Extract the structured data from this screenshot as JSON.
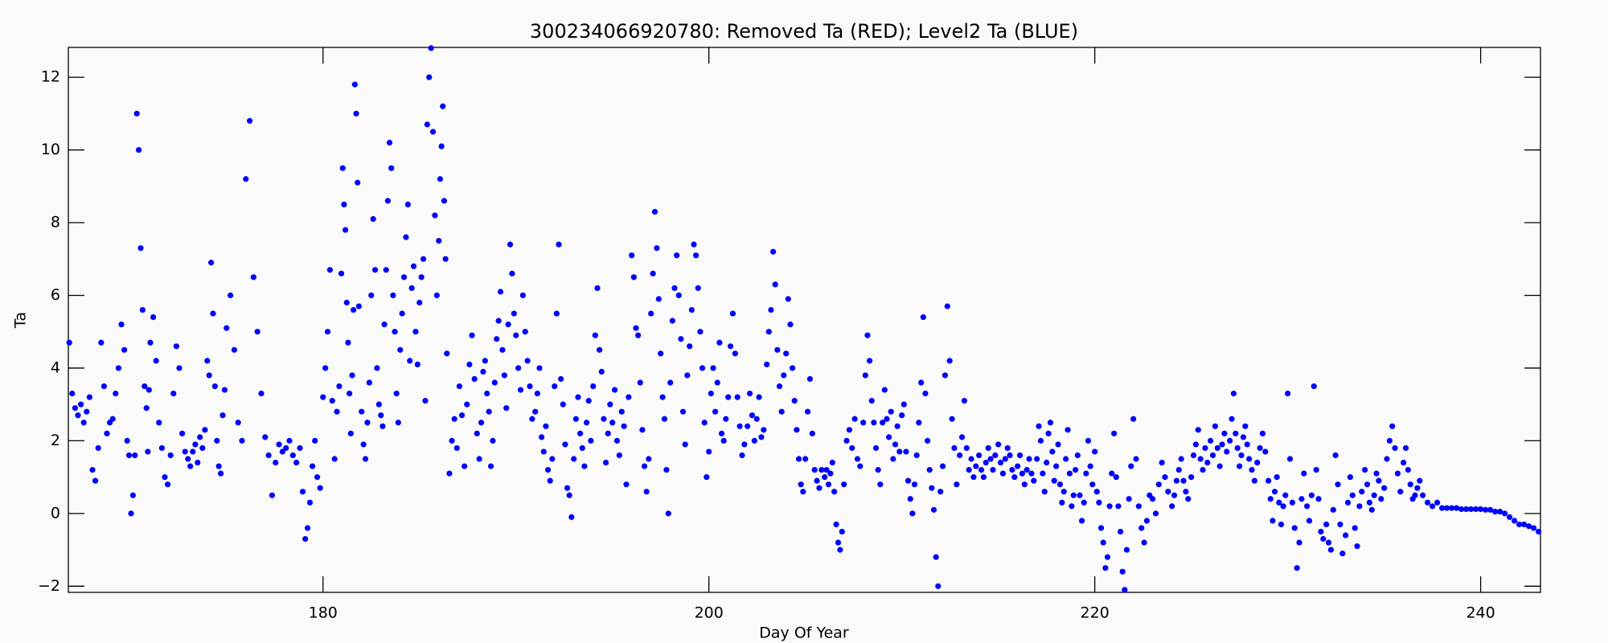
{
  "chart_data": {
    "type": "scatter",
    "title": "300234066920780: Removed Ta (RED); Level2 Ta (BLUE)",
    "x_label": "Day Of Year",
    "y_label": "Ta",
    "color": "#0000ff",
    "xlim": [
      166.8,
      243.1
    ],
    "ylim": [
      -2.17,
      12.82
    ],
    "xticks": [
      180,
      200,
      220,
      240
    ],
    "yticks": [
      {
        "value": -2,
        "label": "−2"
      },
      0,
      2,
      4,
      6,
      8,
      10,
      12
    ],
    "x": [
      166.85,
      167.0,
      167.15,
      167.3,
      167.45,
      167.6,
      167.75,
      167.9,
      168.05,
      168.2,
      168.35,
      168.5,
      168.65,
      168.8,
      168.95,
      169.1,
      169.25,
      169.4,
      169.55,
      169.7,
      169.85,
      169.95,
      170.05,
      170.15,
      170.25,
      170.35,
      170.45,
      170.55,
      170.65,
      170.75,
      170.85,
      170.92,
      170.98,
      171.05,
      171.2,
      171.35,
      171.5,
      171.65,
      171.8,
      171.95,
      172.1,
      172.25,
      172.4,
      172.55,
      172.7,
      172.85,
      173.0,
      173.12,
      173.25,
      173.38,
      173.5,
      173.62,
      173.75,
      173.88,
      174.0,
      174.1,
      174.2,
      174.3,
      174.4,
      174.5,
      174.6,
      174.7,
      174.8,
      174.9,
      175.0,
      175.2,
      175.4,
      175.6,
      175.8,
      176.0,
      176.2,
      176.4,
      176.6,
      176.8,
      177.0,
      177.18,
      177.36,
      177.54,
      177.72,
      177.9,
      178.08,
      178.26,
      178.44,
      178.62,
      178.8,
      178.95,
      179.08,
      179.2,
      179.32,
      179.45,
      179.58,
      179.7,
      179.85,
      180.0,
      180.12,
      180.24,
      180.36,
      180.48,
      180.6,
      180.72,
      180.84,
      180.95,
      181.02,
      181.09,
      181.16,
      181.23,
      181.3,
      181.37,
      181.44,
      181.51,
      181.58,
      181.65,
      181.72,
      181.79,
      181.86,
      182.0,
      182.1,
      182.2,
      182.3,
      182.4,
      182.5,
      182.6,
      182.7,
      182.8,
      182.9,
      183.0,
      183.09,
      183.18,
      183.27,
      183.36,
      183.45,
      183.54,
      183.63,
      183.72,
      183.81,
      183.9,
      184.0,
      184.1,
      184.2,
      184.3,
      184.4,
      184.5,
      184.6,
      184.7,
      184.8,
      184.9,
      185.0,
      185.1,
      185.2,
      185.3,
      185.4,
      185.5,
      185.6,
      185.7,
      185.8,
      185.9,
      186.0,
      186.07,
      186.14,
      186.21,
      186.28,
      186.35,
      186.42,
      186.55,
      186.68,
      186.81,
      186.94,
      187.07,
      187.2,
      187.33,
      187.46,
      187.59,
      187.72,
      187.85,
      187.98,
      188.1,
      188.2,
      188.3,
      188.4,
      188.5,
      188.6,
      188.7,
      188.8,
      188.9,
      189.0,
      189.1,
      189.2,
      189.3,
      189.4,
      189.5,
      189.6,
      189.7,
      189.8,
      189.9,
      190.0,
      190.12,
      190.24,
      190.36,
      190.48,
      190.6,
      190.72,
      190.84,
      191.0,
      191.11,
      191.22,
      191.33,
      191.44,
      191.55,
      191.66,
      191.77,
      191.88,
      192.0,
      192.11,
      192.22,
      192.33,
      192.44,
      192.55,
      192.66,
      192.77,
      192.88,
      193.0,
      193.11,
      193.22,
      193.33,
      193.44,
      193.55,
      193.66,
      193.77,
      193.88,
      194.0,
      194.11,
      194.22,
      194.33,
      194.44,
      194.55,
      194.66,
      194.77,
      194.88,
      195.0,
      195.12,
      195.24,
      195.36,
      195.48,
      195.6,
      195.72,
      195.84,
      196.0,
      196.11,
      196.22,
      196.33,
      196.44,
      196.55,
      196.66,
      196.77,
      196.88,
      197.0,
      197.1,
      197.2,
      197.3,
      197.4,
      197.5,
      197.6,
      197.7,
      197.8,
      197.9,
      198.0,
      198.11,
      198.22,
      198.33,
      198.44,
      198.55,
      198.66,
      198.77,
      198.88,
      199.0,
      199.11,
      199.22,
      199.33,
      199.44,
      199.55,
      199.66,
      199.77,
      199.88,
      200.0,
      200.11,
      200.22,
      200.33,
      200.44,
      200.55,
      200.66,
      200.77,
      200.88,
      201.0,
      201.12,
      201.24,
      201.36,
      201.48,
      201.6,
      201.72,
      201.84,
      202.0,
      202.12,
      202.24,
      202.36,
      202.48,
      202.6,
      202.72,
      202.84,
      203.0,
      203.11,
      203.22,
      203.33,
      203.44,
      203.55,
      203.66,
      203.77,
      203.88,
      204.0,
      204.11,
      204.22,
      204.33,
      204.44,
      204.55,
      204.66,
      204.77,
      204.88,
      205.0,
      205.12,
      205.24,
      205.36,
      205.48,
      205.6,
      205.72,
      205.84,
      206.0,
      206.1,
      206.2,
      206.3,
      206.4,
      206.5,
      206.6,
      206.7,
      206.8,
      206.9,
      207.0,
      207.14,
      207.28,
      207.42,
      207.56,
      207.7,
      207.84,
      208.0,
      208.11,
      208.22,
      208.33,
      208.44,
      208.55,
      208.66,
      208.77,
      208.88,
      209.0,
      209.11,
      209.22,
      209.33,
      209.44,
      209.55,
      209.66,
      209.77,
      209.88,
      210.0,
      210.11,
      210.22,
      210.33,
      210.44,
      210.55,
      210.66,
      210.77,
      210.88,
      211.0,
      211.11,
      211.22,
      211.33,
      211.44,
      211.55,
      211.66,
      211.77,
      211.88,
      212.0,
      212.12,
      212.24,
      212.36,
      212.48,
      212.6,
      212.72,
      212.84,
      213.0,
      213.12,
      213.24,
      213.36,
      213.48,
      213.6,
      213.72,
      213.84,
      214.0,
      214.12,
      214.24,
      214.36,
      214.48,
      214.6,
      214.72,
      214.84,
      215.0,
      215.12,
      215.24,
      215.36,
      215.48,
      215.6,
      215.72,
      215.84,
      216.0,
      216.12,
      216.24,
      216.36,
      216.48,
      216.6,
      216.72,
      216.84,
      217.0,
      217.1,
      217.2,
      217.3,
      217.4,
      217.5,
      217.6,
      217.7,
      217.8,
      217.9,
      218.0,
      218.1,
      218.2,
      218.3,
      218.4,
      218.5,
      218.6,
      218.7,
      218.8,
      218.9,
      219.0,
      219.11,
      219.22,
      219.33,
      219.44,
      219.55,
      219.66,
      219.77,
      219.88,
      220.0,
      220.11,
      220.22,
      220.33,
      220.44,
      220.55,
      220.66,
      220.77,
      220.88,
      221.0,
      221.11,
      221.22,
      221.33,
      221.44,
      221.55,
      221.66,
      221.77,
      221.88,
      222.0,
      222.14,
      222.28,
      222.42,
      222.56,
      222.7,
      222.84,
      223.0,
      223.16,
      223.32,
      223.48,
      223.64,
      223.8,
      224.0,
      224.12,
      224.24,
      224.36,
      224.48,
      224.6,
      224.72,
      224.84,
      225.0,
      225.12,
      225.24,
      225.36,
      225.48,
      225.6,
      225.72,
      225.84,
      226.0,
      226.12,
      226.24,
      226.36,
      226.48,
      226.6,
      226.72,
      226.84,
      227.0,
      227.1,
      227.2,
      227.3,
      227.4,
      227.5,
      227.6,
      227.7,
      227.8,
      227.9,
      228.0,
      228.14,
      228.28,
      228.42,
      228.56,
      228.7,
      228.84,
      229.0,
      229.11,
      229.22,
      229.33,
      229.44,
      229.55,
      229.66,
      229.77,
      229.88,
      230.0,
      230.12,
      230.24,
      230.36,
      230.48,
      230.6,
      230.72,
      230.84,
      231.0,
      231.12,
      231.24,
      231.36,
      231.48,
      231.6,
      231.72,
      231.84,
      232.0,
      232.12,
      232.24,
      232.36,
      232.48,
      232.6,
      232.72,
      232.84,
      233.0,
      233.12,
      233.24,
      233.36,
      233.48,
      233.6,
      233.72,
      233.84,
      234.0,
      234.12,
      234.24,
      234.36,
      234.48,
      234.6,
      234.72,
      234.84,
      235.0,
      235.14,
      235.28,
      235.42,
      235.56,
      235.7,
      235.84,
      236.0,
      236.12,
      236.24,
      236.36,
      236.48,
      236.6,
      236.72,
      236.84,
      237.0,
      237.25,
      237.5,
      237.75,
      238.0,
      238.25,
      238.5,
      238.75,
      239.0,
      239.25,
      239.5,
      239.75,
      240.0,
      240.25,
      240.5,
      240.75,
      241.0,
      241.25,
      241.5,
      241.75,
      242.0,
      242.25,
      242.5,
      242.75,
      243.0
    ],
    "values": [
      4.7,
      3.3,
      2.9,
      2.7,
      3.0,
      2.5,
      2.8,
      3.2,
      1.2,
      0.9,
      1.8,
      4.7,
      3.5,
      2.2,
      2.5,
      2.6,
      3.3,
      4.0,
      5.2,
      4.5,
      2.0,
      1.6,
      0.0,
      0.5,
      1.6,
      11.0,
      10.0,
      7.3,
      5.6,
      3.5,
      2.9,
      1.7,
      3.4,
      4.7,
      5.4,
      4.2,
      2.5,
      1.8,
      1.0,
      0.8,
      1.6,
      3.3,
      4.6,
      4.0,
      2.2,
      1.7,
      1.5,
      1.3,
      1.7,
      1.9,
      1.4,
      2.1,
      1.8,
      2.3,
      4.2,
      3.8,
      6.9,
      5.5,
      3.5,
      2.0,
      1.3,
      1.1,
      2.7,
      3.4,
      5.1,
      6.0,
      4.5,
      2.5,
      2.0,
      9.2,
      10.8,
      6.5,
      5.0,
      3.3,
      2.1,
      1.6,
      0.5,
      1.4,
      1.9,
      1.7,
      1.8,
      2.0,
      1.6,
      1.4,
      1.8,
      0.6,
      -0.7,
      -0.4,
      0.3,
      1.3,
      2.0,
      1.0,
      0.7,
      3.2,
      4.0,
      5.0,
      6.7,
      3.1,
      1.5,
      2.8,
      3.5,
      6.6,
      9.5,
      8.5,
      7.8,
      5.8,
      4.7,
      3.3,
      2.2,
      3.8,
      5.6,
      11.8,
      11.0,
      9.1,
      5.7,
      2.8,
      1.9,
      1.5,
      2.5,
      3.6,
      6.0,
      8.1,
      6.7,
      4.0,
      3.0,
      2.7,
      2.4,
      5.2,
      6.7,
      8.6,
      10.2,
      9.5,
      6.0,
      5.0,
      3.3,
      2.5,
      4.5,
      5.5,
      6.5,
      7.6,
      8.5,
      4.2,
      6.2,
      6.8,
      5.0,
      4.1,
      5.8,
      6.5,
      7.0,
      3.1,
      10.7,
      12.0,
      12.8,
      10.5,
      8.2,
      6.0,
      7.5,
      9.2,
      10.1,
      11.2,
      8.6,
      7.0,
      4.4,
      1.1,
      2.0,
      2.6,
      1.8,
      3.5,
      2.7,
      1.3,
      3.0,
      4.1,
      4.9,
      3.7,
      2.2,
      1.5,
      2.5,
      3.9,
      4.2,
      3.3,
      2.8,
      1.3,
      2.0,
      3.6,
      4.8,
      5.3,
      6.1,
      4.5,
      3.8,
      2.9,
      5.2,
      7.4,
      6.6,
      5.5,
      4.9,
      4.0,
      3.4,
      6.0,
      5.0,
      4.2,
      3.5,
      2.6,
      2.8,
      3.3,
      4.0,
      2.1,
      1.7,
      2.4,
      1.2,
      0.9,
      1.5,
      3.5,
      5.5,
      7.4,
      3.7,
      3.0,
      1.9,
      0.7,
      0.5,
      -0.1,
      1.5,
      2.6,
      3.2,
      2.2,
      1.8,
      1.3,
      2.5,
      3.1,
      2.0,
      3.5,
      4.9,
      6.2,
      4.5,
      3.9,
      2.6,
      1.4,
      2.2,
      3.0,
      2.5,
      3.4,
      2.0,
      1.6,
      2.8,
      2.4,
      0.8,
      3.2,
      7.1,
      6.5,
      5.1,
      4.9,
      3.6,
      2.3,
      1.3,
      0.6,
      1.5,
      5.5,
      6.6,
      8.3,
      7.3,
      5.9,
      4.4,
      3.2,
      2.6,
      1.2,
      0.0,
      3.6,
      5.3,
      6.2,
      7.1,
      6.0,
      4.8,
      2.8,
      1.9,
      3.8,
      4.6,
      5.6,
      7.4,
      7.1,
      6.2,
      5.0,
      4.0,
      2.5,
      1.0,
      1.7,
      3.3,
      4.0,
      2.8,
      3.6,
      4.7,
      2.2,
      2.0,
      2.6,
      3.2,
      4.6,
      5.5,
      4.4,
      3.2,
      2.4,
      1.6,
      1.9,
      2.4,
      3.3,
      2.7,
      2.0,
      2.6,
      3.2,
      2.1,
      2.3,
      4.1,
      5.0,
      5.6,
      7.2,
      6.3,
      4.5,
      3.5,
      2.8,
      3.8,
      4.4,
      5.9,
      5.2,
      4.0,
      3.1,
      2.3,
      1.5,
      0.8,
      0.6,
      1.5,
      2.8,
      3.7,
      2.2,
      1.2,
      0.9,
      0.7,
      1.2,
      1.0,
      1.2,
      0.8,
      1.1,
      1.4,
      0.6,
      -0.3,
      -0.8,
      -1.0,
      -0.5,
      0.8,
      2.0,
      2.3,
      1.8,
      2.6,
      1.5,
      1.3,
      2.5,
      3.8,
      4.9,
      4.2,
      3.1,
      2.5,
      1.8,
      1.2,
      0.8,
      2.5,
      3.4,
      2.6,
      2.1,
      2.8,
      1.5,
      1.9,
      2.4,
      1.7,
      2.7,
      3.0,
      1.7,
      0.9,
      0.4,
      0.0,
      0.8,
      1.6,
      2.5,
      3.6,
      5.4,
      3.3,
      2.0,
      1.2,
      0.7,
      0.1,
      -1.2,
      -2.0,
      0.6,
      1.3,
      3.8,
      5.7,
      4.2,
      2.6,
      1.8,
      0.8,
      1.6,
      2.1,
      3.1,
      1.8,
      1.2,
      1.5,
      1.0,
      1.3,
      1.6,
      1.2,
      1.0,
      1.4,
      1.8,
      1.5,
      1.2,
      1.6,
      1.9,
      1.4,
      1.1,
      1.5,
      1.8,
      1.6,
      1.2,
      1.0,
      1.3,
      1.6,
      1.1,
      0.8,
      1.2,
      1.5,
      1.1,
      0.9,
      1.5,
      2.4,
      2.0,
      1.1,
      0.6,
      1.4,
      2.2,
      2.5,
      1.7,
      0.9,
      1.3,
      1.9,
      0.8,
      0.3,
      0.6,
      1.5,
      2.3,
      1.1,
      0.2,
      0.5,
      1.2,
      1.6,
      0.5,
      -0.2,
      0.3,
      1.1,
      2.0,
      1.3,
      0.8,
      1.7,
      0.6,
      0.3,
      -0.4,
      -0.8,
      -1.5,
      -1.2,
      0.2,
      1.1,
      2.2,
      1.0,
      0.2,
      -0.5,
      -1.6,
      -2.1,
      -1.0,
      0.4,
      1.3,
      2.6,
      1.5,
      0.2,
      -0.4,
      -0.8,
      -0.2,
      0.5,
      0.4,
      0.0,
      0.8,
      1.4,
      1.0,
      0.6,
      0.2,
      0.5,
      0.9,
      1.2,
      1.5,
      0.9,
      0.6,
      0.4,
      1.0,
      1.6,
      1.9,
      2.3,
      1.5,
      1.2,
      1.8,
      1.4,
      2.0,
      1.6,
      2.4,
      1.8,
      1.3,
      1.9,
      2.2,
      1.7,
      2.0,
      2.6,
      3.3,
      2.2,
      1.8,
      1.3,
      1.6,
      2.1,
      2.4,
      1.9,
      1.5,
      1.2,
      0.9,
      1.4,
      1.8,
      2.2,
      1.7,
      0.9,
      0.4,
      -0.2,
      0.6,
      1.0,
      0.3,
      -0.3,
      0.2,
      0.5,
      3.3,
      1.5,
      0.3,
      -0.4,
      -1.5,
      -0.8,
      0.4,
      1.1,
      0.2,
      -0.2,
      0.5,
      3.5,
      1.2,
      0.4,
      -0.5,
      -0.7,
      -0.3,
      -0.8,
      -1.0,
      0.1,
      1.6,
      0.8,
      -0.3,
      -1.1,
      -0.6,
      0.3,
      1.0,
      0.5,
      -0.4,
      -0.9,
      0.2,
      0.6,
      1.2,
      0.8,
      0.3,
      0.1,
      0.5,
      1.1,
      0.9,
      0.4,
      0.7,
      1.5,
      2.0,
      2.4,
      1.8,
      1.1,
      0.6,
      1.4,
      1.8,
      1.2,
      0.8,
      0.4,
      0.5,
      0.7,
      0.9,
      0.5,
      0.3,
      0.2,
      0.3,
      0.15,
      0.15,
      0.15,
      0.15,
      0.12,
      0.12,
      0.12,
      0.12,
      0.12,
      0.1,
      0.1,
      0.05,
      0.05,
      0.0,
      -0.1,
      -0.2,
      -0.3,
      -0.3,
      -0.35,
      -0.4,
      -0.5
    ]
  }
}
